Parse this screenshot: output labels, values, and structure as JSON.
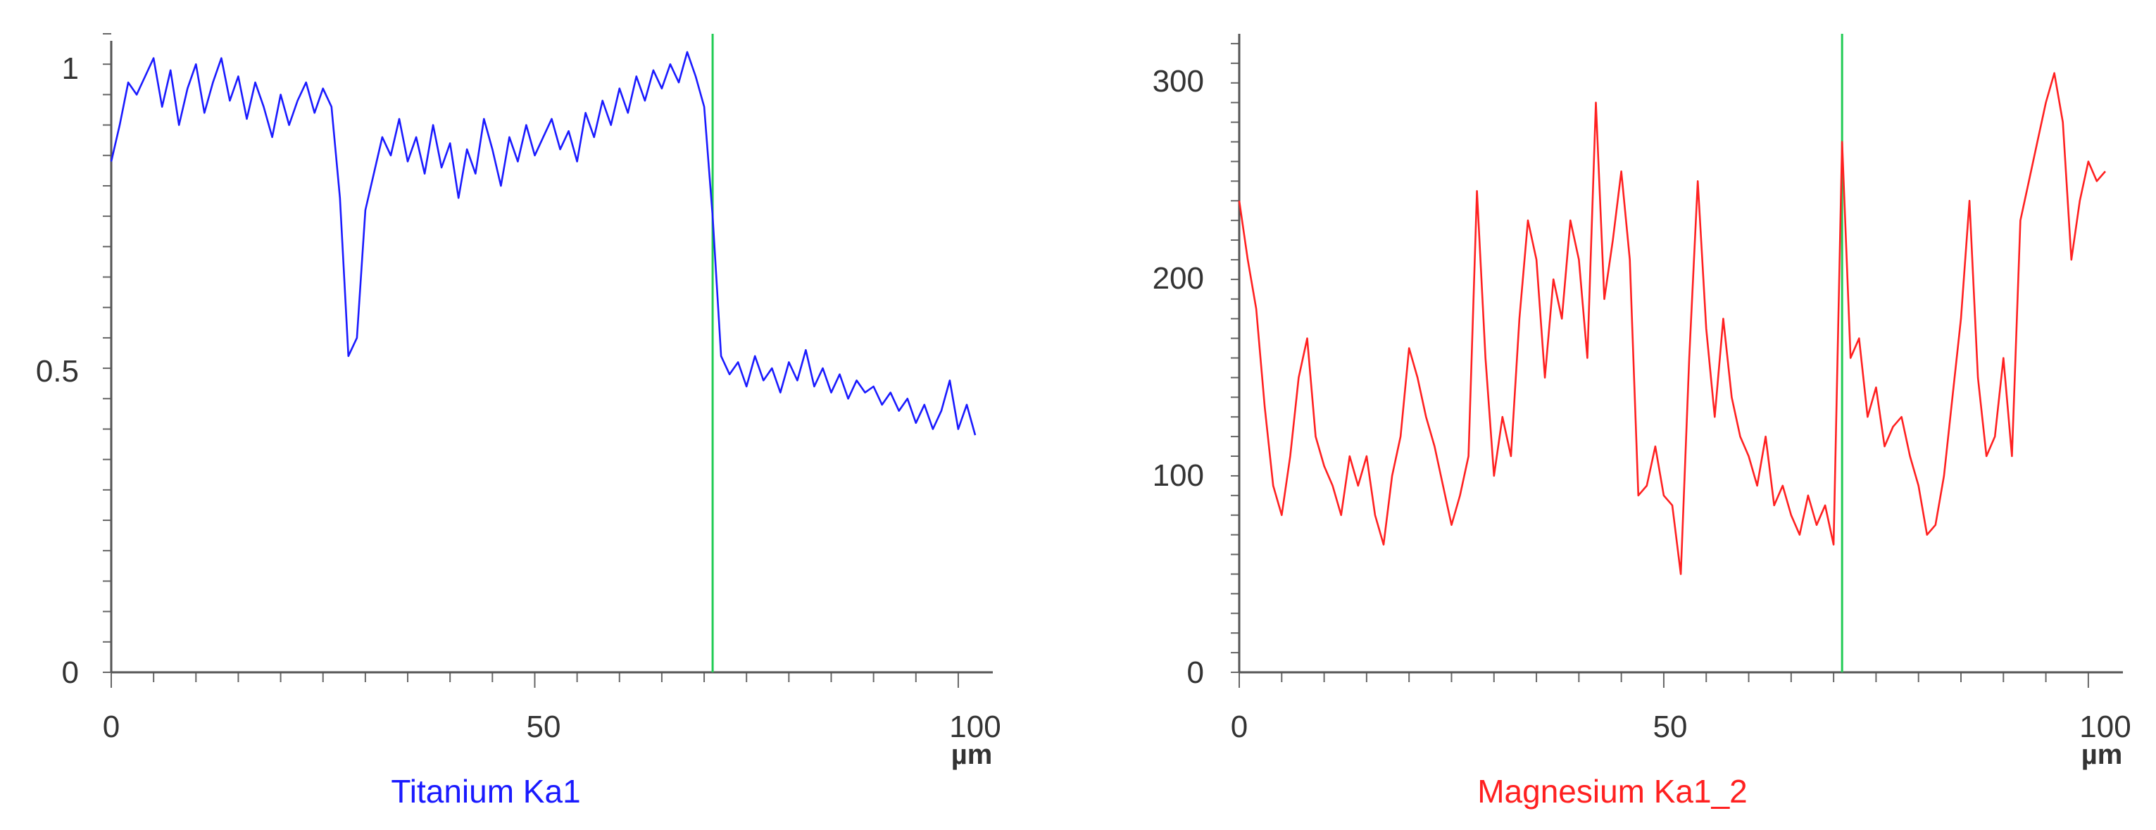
{
  "chart_data": [
    {
      "type": "line",
      "xlim": [
        0,
        102
      ],
      "ylim": [
        0,
        1.05
      ],
      "x_ticks": [
        "0",
        "50",
        "100"
      ],
      "y_ticks": [
        "0",
        "0.5",
        "1"
      ],
      "x_unit": "µm",
      "cursor_x": 71,
      "grid": false,
      "series": [
        {
          "name": "Titanium Ka1",
          "color": "#1a1aff",
          "points": [
            [
              0,
              0.84
            ],
            [
              1,
              0.9
            ],
            [
              2,
              0.97
            ],
            [
              3,
              0.95
            ],
            [
              4,
              0.98
            ],
            [
              5,
              1.01
            ],
            [
              6,
              0.93
            ],
            [
              7,
              0.99
            ],
            [
              8,
              0.9
            ],
            [
              9,
              0.96
            ],
            [
              10,
              1.0
            ],
            [
              11,
              0.92
            ],
            [
              12,
              0.97
            ],
            [
              13,
              1.01
            ],
            [
              14,
              0.94
            ],
            [
              15,
              0.98
            ],
            [
              16,
              0.91
            ],
            [
              17,
              0.97
            ],
            [
              18,
              0.93
            ],
            [
              19,
              0.88
            ],
            [
              20,
              0.95
            ],
            [
              21,
              0.9
            ],
            [
              22,
              0.94
            ],
            [
              23,
              0.97
            ],
            [
              24,
              0.92
            ],
            [
              25,
              0.96
            ],
            [
              26,
              0.93
            ],
            [
              27,
              0.78
            ],
            [
              28,
              0.52
            ],
            [
              29,
              0.55
            ],
            [
              30,
              0.76
            ],
            [
              31,
              0.82
            ],
            [
              32,
              0.88
            ],
            [
              33,
              0.85
            ],
            [
              34,
              0.91
            ],
            [
              35,
              0.84
            ],
            [
              36,
              0.88
            ],
            [
              37,
              0.82
            ],
            [
              38,
              0.9
            ],
            [
              39,
              0.83
            ],
            [
              40,
              0.87
            ],
            [
              41,
              0.78
            ],
            [
              42,
              0.86
            ],
            [
              43,
              0.82
            ],
            [
              44,
              0.91
            ],
            [
              45,
              0.86
            ],
            [
              46,
              0.8
            ],
            [
              47,
              0.88
            ],
            [
              48,
              0.84
            ],
            [
              49,
              0.9
            ],
            [
              50,
              0.85
            ],
            [
              51,
              0.88
            ],
            [
              52,
              0.91
            ],
            [
              53,
              0.86
            ],
            [
              54,
              0.89
            ],
            [
              55,
              0.84
            ],
            [
              56,
              0.92
            ],
            [
              57,
              0.88
            ],
            [
              58,
              0.94
            ],
            [
              59,
              0.9
            ],
            [
              60,
              0.96
            ],
            [
              61,
              0.92
            ],
            [
              62,
              0.98
            ],
            [
              63,
              0.94
            ],
            [
              64,
              0.99
            ],
            [
              65,
              0.96
            ],
            [
              66,
              1.0
            ],
            [
              67,
              0.97
            ],
            [
              68,
              1.02
            ],
            [
              69,
              0.98
            ],
            [
              70,
              0.93
            ],
            [
              71,
              0.75
            ],
            [
              72,
              0.52
            ],
            [
              73,
              0.49
            ],
            [
              74,
              0.51
            ],
            [
              75,
              0.47
            ],
            [
              76,
              0.52
            ],
            [
              77,
              0.48
            ],
            [
              78,
              0.5
            ],
            [
              79,
              0.46
            ],
            [
              80,
              0.51
            ],
            [
              81,
              0.48
            ],
            [
              82,
              0.53
            ],
            [
              83,
              0.47
            ],
            [
              84,
              0.5
            ],
            [
              85,
              0.46
            ],
            [
              86,
              0.49
            ],
            [
              87,
              0.45
            ],
            [
              88,
              0.48
            ],
            [
              89,
              0.46
            ],
            [
              90,
              0.47
            ],
            [
              91,
              0.44
            ],
            [
              92,
              0.46
            ],
            [
              93,
              0.43
            ],
            [
              94,
              0.45
            ],
            [
              95,
              0.41
            ],
            [
              96,
              0.44
            ],
            [
              97,
              0.4
            ],
            [
              98,
              0.43
            ],
            [
              99,
              0.48
            ],
            [
              100,
              0.4
            ],
            [
              101,
              0.44
            ],
            [
              102,
              0.39
            ]
          ]
        }
      ]
    },
    {
      "type": "line",
      "xlim": [
        0,
        102
      ],
      "ylim": [
        0,
        325
      ],
      "x_ticks": [
        "0",
        "50",
        "100"
      ],
      "y_ticks": [
        "0",
        "100",
        "200",
        "300"
      ],
      "x_unit": "µm",
      "cursor_x": 71,
      "grid": false,
      "series": [
        {
          "name": "Magnesium Ka1_2",
          "color": "#ff2020",
          "points": [
            [
              0,
              240
            ],
            [
              1,
              210
            ],
            [
              2,
              185
            ],
            [
              3,
              135
            ],
            [
              4,
              95
            ],
            [
              5,
              80
            ],
            [
              6,
              110
            ],
            [
              7,
              150
            ],
            [
              8,
              170
            ],
            [
              9,
              120
            ],
            [
              10,
              105
            ],
            [
              11,
              95
            ],
            [
              12,
              80
            ],
            [
              13,
              110
            ],
            [
              14,
              95
            ],
            [
              15,
              110
            ],
            [
              16,
              80
            ],
            [
              17,
              65
            ],
            [
              18,
              100
            ],
            [
              19,
              120
            ],
            [
              20,
              165
            ],
            [
              21,
              150
            ],
            [
              22,
              130
            ],
            [
              23,
              115
            ],
            [
              24,
              95
            ],
            [
              25,
              75
            ],
            [
              26,
              90
            ],
            [
              27,
              110
            ],
            [
              28,
              245
            ],
            [
              29,
              160
            ],
            [
              30,
              100
            ],
            [
              31,
              130
            ],
            [
              32,
              110
            ],
            [
              33,
              180
            ],
            [
              34,
              230
            ],
            [
              35,
              210
            ],
            [
              36,
              150
            ],
            [
              37,
              200
            ],
            [
              38,
              180
            ],
            [
              39,
              230
            ],
            [
              40,
              210
            ],
            [
              41,
              160
            ],
            [
              42,
              290
            ],
            [
              43,
              190
            ],
            [
              44,
              220
            ],
            [
              45,
              255
            ],
            [
              46,
              210
            ],
            [
              47,
              90
            ],
            [
              48,
              95
            ],
            [
              49,
              115
            ],
            [
              50,
              90
            ],
            [
              51,
              85
            ],
            [
              52,
              50
            ],
            [
              53,
              160
            ],
            [
              54,
              250
            ],
            [
              55,
              175
            ],
            [
              56,
              130
            ],
            [
              57,
              180
            ],
            [
              58,
              140
            ],
            [
              59,
              120
            ],
            [
              60,
              110
            ],
            [
              61,
              95
            ],
            [
              62,
              120
            ],
            [
              63,
              85
            ],
            [
              64,
              95
            ],
            [
              65,
              80
            ],
            [
              66,
              70
            ],
            [
              67,
              90
            ],
            [
              68,
              75
            ],
            [
              69,
              85
            ],
            [
              70,
              65
            ],
            [
              71,
              270
            ],
            [
              72,
              160
            ],
            [
              73,
              170
            ],
            [
              74,
              130
            ],
            [
              75,
              145
            ],
            [
              76,
              115
            ],
            [
              77,
              125
            ],
            [
              78,
              130
            ],
            [
              79,
              110
            ],
            [
              80,
              95
            ],
            [
              81,
              70
            ],
            [
              82,
              75
            ],
            [
              83,
              100
            ],
            [
              84,
              140
            ],
            [
              85,
              180
            ],
            [
              86,
              240
            ],
            [
              87,
              150
            ],
            [
              88,
              110
            ],
            [
              89,
              120
            ],
            [
              90,
              160
            ],
            [
              91,
              110
            ],
            [
              92,
              230
            ],
            [
              93,
              250
            ],
            [
              94,
              270
            ],
            [
              95,
              290
            ],
            [
              96,
              305
            ],
            [
              97,
              280
            ],
            [
              98,
              210
            ],
            [
              99,
              240
            ],
            [
              100,
              260
            ],
            [
              101,
              250
            ],
            [
              102,
              255
            ]
          ]
        }
      ]
    }
  ]
}
